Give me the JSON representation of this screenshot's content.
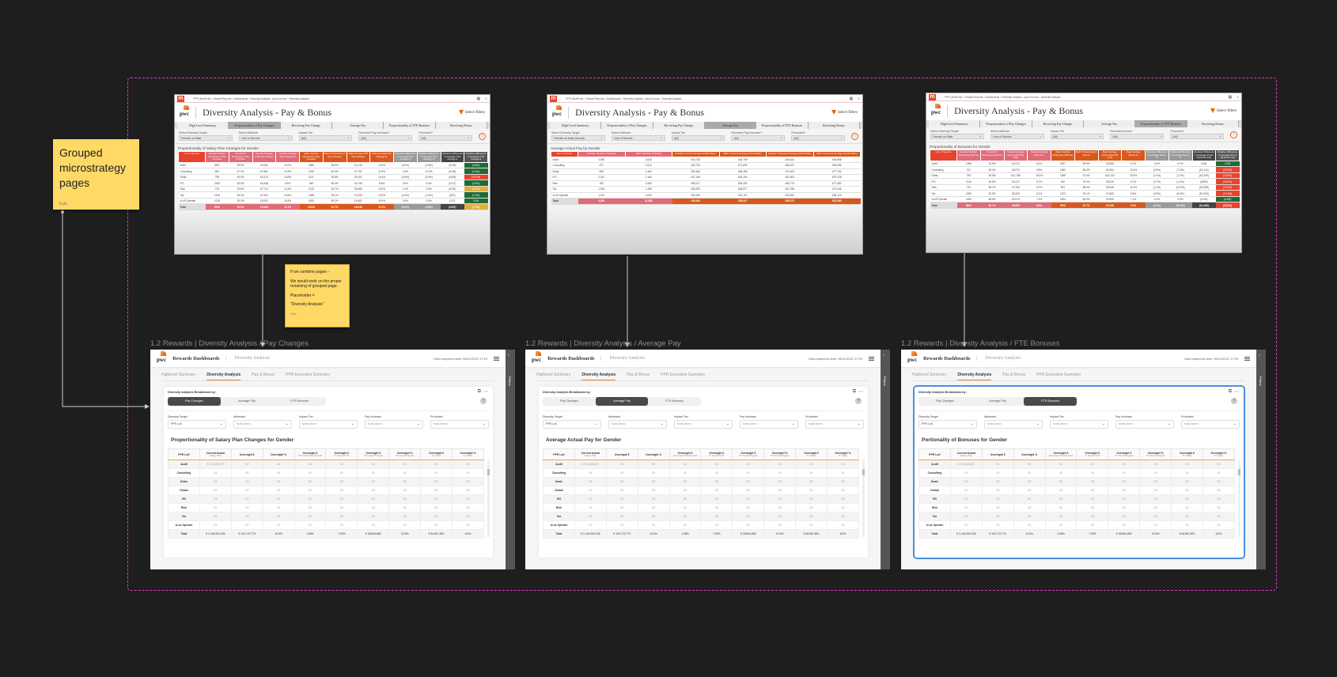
{
  "canvas": {
    "background": "#1e1e1e",
    "section_border": "#d63fc1",
    "selection": "#4a90e2",
    "sticky": "#ffd966"
  },
  "notes": {
    "grouped": {
      "text": "Grouped microstrategy pages",
      "author": "Kyle"
    },
    "combine": {
      "lines": [
        "If we combine pages -",
        "We would work on the proper renaming of grouped page.",
        "Placeholder =",
        "\"Diversity Analysis\""
      ],
      "author": "Kyle"
    }
  },
  "legacy_common": {
    "breadcrumb": "PPR (NonProd) > Shared Reports > Dashboards > Diversity Analysis - pay & bonus > Diversity Analysis",
    "title": "Diversity Analysis - Pay & Bonus",
    "select_filters": "Select filters",
    "tabs": [
      "High Level Summary",
      "Proportionality of Pay Changes",
      "Receiving Pay Change",
      "Average Pay",
      "Proportionality of FTE Bonuses",
      "Receiving Bonus"
    ]
  },
  "legacy": [
    {
      "active_tab": 1,
      "table_title": "Proportionality of Salary Plan Changes for Gender",
      "filters": [
        {
          "label": "Select Diversity Target",
          "value": "Female vs Male"
        },
        {
          "label": "Select Attribute",
          "value": "Line of Service"
        },
        {
          "label": "Impact Tier",
          "value": "(All)"
        },
        {
          "label": "Received Pay Increase?",
          "value": "(All)"
        },
        {
          "label": "Promoted?",
          "value": "(All)"
        }
      ],
      "columns": [
        "Line of Service",
        "Female Number Receiving A Pay Increase",
        "Female % Receiving A Pay Increase",
        "Female Average FTE Pay Change",
        "Female Average Pay Change %",
        "Male Number Receiving A Pay Increase",
        "Male % Receiving A Pay Increase",
        "Male Average FTE Pay Change",
        "Male Average Pay Change %",
        "Absolute Difference In Average Pay Change %",
        "Relative Difference In Average Pay Change %",
        "Absolute Difference In Average FTE Change £",
        "Relative Difference In Average FTE Change £"
      ],
      "col_colors": [
        "#e8432d",
        "#e06c78",
        "#e06c78",
        "#e06c78",
        "#e06c78",
        "#d9591d",
        "#d9591d",
        "#d9591d",
        "#d9591d",
        "#9a9a9a",
        "#9a9a9a",
        "#444444",
        "#555555"
      ],
      "rows": [
        [
          "Audit",
          "3067",
          "98.9%",
          "£3,084",
          "10.0%",
          "2566",
          "98.9%",
          "£4,133",
          "10.5%",
          "(0.5%)",
          "(4.8%)",
          "(£149)",
          "(3.6%)"
        ],
        [
          "Consulting",
          "652",
          "87.2%",
          "£7,661",
          "13.3%",
          "1259",
          "83.3%",
          "£7,787",
          "11.9%",
          "1.5%",
          "12.3%",
          "(£135)",
          "(1.4%)"
        ],
        [
          "Deals",
          "798",
          "94.9%",
          "£5,313",
          "13.8%",
          "1317",
          "93.8%",
          "£9,281",
          "14.4%",
          "(0.6%)",
          "(5.4%)",
          "(£948)",
          "(10.2%)"
        ],
        [
          "IFS",
          "2159",
          "82.0%",
          "£4,638",
          "9.5%",
          "949",
          "80.4%",
          "£4,755",
          "8.6%",
          "0.9%",
          "5.9%",
          "(£117)",
          "(2.5%)"
        ],
        [
          "Risk",
          "729",
          "92.8%",
          "£7,714",
          "13.4%",
          "1010",
          "93.7%",
          "£8,465",
          "13.4%",
          "0.1%",
          "0.5%",
          "(£751)",
          "(9.2%)"
        ],
        [
          "Tax",
          "1518",
          "95.2%",
          "£7,542",
          "12.8%",
          "1388",
          "95.1%",
          "£7,833",
          "13.0%",
          "(0.2%)",
          "(1.6%)",
          "(£91)",
          "(1.2%)"
        ],
        [
          "xLoS Operate",
          "1218",
          "92.2%",
          "£3,001",
          "10.5%",
          "1632",
          "90.2%",
          "£2,882",
          "10.0%",
          "0.5%",
          "4.5%",
          "£121",
          "3.4%"
        ],
        [
          "Total",
          "9349",
          "90.9%",
          "£5,688",
          "11.3%",
          "10149",
          "91.7%",
          "£6,646",
          "11.3%",
          "(0.2%)",
          "(3.5%)",
          "(£437)",
          "(7.2%)"
        ]
      ],
      "last_col_colors": [
        "#1e6b35",
        "#1e6b35",
        "#e8432d",
        "#1e6b35",
        "#e0b040",
        "#1e6b35",
        "#1e6b35",
        "#e0b040"
      ]
    },
    {
      "active_tab": 3,
      "table_title": "Average Actual Pay by Gender",
      "filters": [
        {
          "label": "Select Diversity Target",
          "value": "Female vs Male (Actual)"
        },
        {
          "label": "Select Attribute",
          "value": "Line of Service"
        },
        {
          "label": "Impact Tier",
          "value": "(All)"
        },
        {
          "label": "Received Pay Increase?",
          "value": "(All)"
        },
        {
          "label": "Promoted?",
          "value": "(All)"
        }
      ],
      "columns": [
        "Line of Service",
        "Female: Number of People",
        "Male: Number of People",
        "Female: Current Average Actual Salary",
        "Male: Current Average Actual Salary",
        "Female: Proposed Average Actual Salary",
        "Male: Proposed Average Actual Salary"
      ],
      "col_colors": [
        "#e8432d",
        "#e06c78",
        "#e06c78",
        "#d9591d",
        "#d9591d",
        "#d9591d",
        "#d9591d"
      ],
      "rows": [
        [
          "Audit",
          "2,090",
          "2,618",
          "£44,736",
          "£44,709",
          "£46,631",
          "£45,858"
        ],
        [
          "Consulting",
          "877",
          "1,512",
          "£60,720",
          "£71,699",
          "£68,257",
          "£82,696"
        ],
        [
          "Deals",
          "839",
          "1,464",
          "£52,462",
          "£68,455",
          "£70,003",
          "£77,704"
        ],
        [
          "IFS",
          "2,347",
          "1,160",
          "£47,169",
          "£52,301",
          "£51,604",
          "£57,028"
        ],
        [
          "Risk",
          "782",
          "1,085",
          "£58,317",
          "£69,250",
          "£65,775",
          "£77,682"
        ],
        [
          "Tax",
          "1,594",
          "1,458",
          "£36,879",
          "£66,877",
          "£67,048",
          "£74,446"
        ],
        [
          "xLoS Operate",
          "1,321",
          "1,810",
          "£30,230",
          "£32,137",
          "£33,262",
          "£35,123"
        ],
        [
          "Total",
          "9,590",
          "11,068",
          "£49,942",
          "£55,927",
          "£56,372",
          "£61,865"
        ]
      ],
      "last_col_colors": []
    },
    {
      "active_tab": 4,
      "table_title": "Proportionality of Bonuses for Gender",
      "filters": [
        {
          "label": "Select Diversity Target",
          "value": "Female vs Male"
        },
        {
          "label": "Select Attribute",
          "value": "Line of Service"
        },
        {
          "label": "Impact Tier",
          "value": "(All)"
        },
        {
          "label": "Received Bonus?",
          "value": "(All)"
        },
        {
          "label": "Promoted?",
          "value": "(All)"
        }
      ],
      "columns": [
        "Line of Service",
        "Female Number Receiving A Bonus",
        "Female % Receiving A Bonus",
        "Female Average bonus adj (FTE only)",
        "Female Average Bonus %",
        "Male Number Receiving A Bonus",
        "Male % Receiving A Bonus",
        "Male Average bonus adj (FTE only)",
        "Male Average Bonus %",
        "Absolute Difference in Average Bonus %",
        "Relative Difference in Average Bonus %",
        "Absolute Difference in Average bonus adj (FTE only)",
        "Relative Difference in Average bonus adj (FTE only)"
      ],
      "col_colors": [
        "#e8432d",
        "#e06c78",
        "#e06c78",
        "#e06c78",
        "#e06c78",
        "#d9591d",
        "#d9591d",
        "#d9591d",
        "#d9591d",
        "#9a9a9a",
        "#9a9a9a",
        "#444444",
        "#555555"
      ],
      "rows": [
        [
          "Audit",
          "1966",
          "91.9%",
          "£4,019",
          "6.4%",
          "2457",
          "89.9%",
          "£3,855",
          "6.1%",
          "0.4%",
          "6.1%",
          "£164",
          "4.3%"
        ],
        [
          "Consulting",
          "317",
          "90.4%",
          "£6,970",
          "9.8%",
          "1363",
          "88.4%",
          "£9,084",
          "10.4%",
          "(0.6%)",
          "(7.6%)",
          "(£2,114)",
          "(23.3%)"
        ],
        [
          "Deals",
          "793",
          "90.5%",
          "£12,785",
          "18.0%",
          "1398",
          "91.0%",
          "£15,134",
          "19.5%",
          "(1.4%)",
          "(7.2%)",
          "(£2,349)",
          "(15.5%)"
        ],
        [
          "IFS",
          "2144",
          "90.8%",
          "£4,217",
          "6.7%",
          "910",
          "76.0%",
          "£5,026",
          "6.7%",
          "(0.7%)",
          "(1.2%)",
          "(£809)",
          "(16.1%)"
        ],
        [
          "Risk",
          "723",
          "89.7%",
          "£7,340",
          "9.7%",
          "991",
          "88.0%",
          "£9,648",
          "11.0%",
          "(1.2%)",
          "(11.9%)",
          "(£2,308)",
          "(23.9%)"
        ],
        [
          "Tax",
          "1509",
          "92.5%",
          "£6,335",
          "8.1%",
          "1373",
          "92.1%",
          "£7,669",
          "8.6%",
          "(0.5%)",
          "(5.9%)",
          "(£1,334)",
          "(17.4%)"
        ],
        [
          "xLoS Operate",
          "1159",
          "86.5%",
          "£2,676",
          "7.4%",
          "1504",
          "84.3%",
          "£2,800",
          "7.1%",
          "0.4%",
          "5.9%",
          "(£124)",
          "(4.4%)"
        ],
        [
          "Total",
          "8820",
          "90.7%",
          "£5,869",
          "8.8%",
          "9976",
          "87.7%",
          "£7,638",
          "9.4%",
          "(1.0%)",
          "(10.2%)",
          "(£1,469)",
          "(20.8%)"
        ]
      ],
      "last_col_colors": [
        "#1e6b35",
        "#e8432d",
        "#e8432d",
        "#e8432d",
        "#e8432d",
        "#e8432d",
        "#1e6b35",
        "#e8432d"
      ]
    }
  ],
  "dashboard": {
    "app_title": "Rewards Dashboards",
    "page_name": "Diversity Analysis",
    "snapshot": "Data snapshot date: 08/11/2022 17:25",
    "tabs": [
      "Highlevel Summary",
      "Diversity Analysis",
      "Pay & Bonus",
      "PPR Executive Summary"
    ],
    "active_tab": 1,
    "breakdown_label": "Diversity Analysis Breakdown by:",
    "segments": [
      "Pay Changes",
      "Average Pay",
      "FTE Bonuses"
    ],
    "filters": [
      {
        "label": "Diversity Target",
        "value": "PPR LoS"
      },
      {
        "label": "Attributes",
        "value": "Multi-Select"
      },
      {
        "label": "Impact Tier",
        "value": "Multi-Select"
      },
      {
        "label": "Pay Increase",
        "value": "Multi-Select"
      },
      {
        "label": "Promoted",
        "value": "Multi-Select"
      }
    ],
    "side_label": "Filters",
    "columns": [
      {
        "title": "PPR LoS",
        "sub": ""
      },
      {
        "title": "Current Actual",
        "sub": "Salary Plan"
      },
      {
        "title": "Overnight €",
        "sub": ""
      },
      {
        "title": "Overnight %",
        "sub": ""
      },
      {
        "title": "Overnight €",
        "sub": "Promoted People Total"
      },
      {
        "title": "Overnight €",
        "sub": "In Grade Total"
      },
      {
        "title": "Overnight €",
        "sub": "Promoted People"
      },
      {
        "title": "Overnight %",
        "sub": "Promoted People"
      },
      {
        "title": "Overnight €",
        "sub": "In Grade"
      },
      {
        "title": "Overnight %",
        "sub": "In Grade"
      }
    ],
    "rows": [
      [
        "Audit",
        "€ 210,345,497",
        "XX",
        "XX",
        "XX",
        "XX",
        "XX",
        "XX",
        "XX",
        "XX"
      ],
      [
        "Consulting",
        "XX",
        "XX",
        "XX",
        "XX",
        "XX",
        "XX",
        "XX",
        "XX",
        "XX"
      ],
      [
        "Deals",
        "XX",
        "XX",
        "XX",
        "XX",
        "XX",
        "XX",
        "XX",
        "XX",
        "XX"
      ],
      [
        "Global",
        "XX",
        "XX",
        "XX",
        "XX",
        "XX",
        "XX",
        "XX",
        "XX",
        "XX"
      ],
      [
        "IFS",
        "XX",
        "XX",
        "XX",
        "XX",
        "XX",
        "XX",
        "XX",
        "XX",
        "XX"
      ],
      [
        "Risk",
        "XX",
        "XX",
        "XX",
        "XX",
        "XX",
        "XX",
        "XX",
        "XX",
        "XX"
      ],
      [
        "Tax",
        "XX",
        "XX",
        "XX",
        "XX",
        "XX",
        "XX",
        "XX",
        "XX",
        "XX"
      ],
      [
        "xLos Operate",
        "XX",
        "XX",
        "XX",
        "XX",
        "XX",
        "XX",
        "XX",
        "XX",
        "XX"
      ],
      [
        "Total",
        "€ 1,118,063,036",
        "€ 120,722,773",
        "10.8%",
        "1.08%",
        "7.53%",
        "€ 35,854,882",
        "22.8%",
        "€ 84,867,891",
        "8.8%"
      ]
    ]
  },
  "frames": [
    {
      "label": "1.2 Rewards | Diversity Analysis / Pay Changes",
      "active_segment": 0,
      "table_title": "Proportionality of Salary Plan Changes for Gender",
      "selected": false
    },
    {
      "label": "1.2 Rewards | Diversity Analysis / Average Pay",
      "active_segment": 1,
      "table_title": "Average Actual Pay for Gender",
      "selected": false
    },
    {
      "label": "1.2 Rewards | Diversity Analysis / FTE Bonuses",
      "active_segment": 2,
      "table_title": "Portionality of Bonuses for Gender",
      "selected": true
    }
  ]
}
